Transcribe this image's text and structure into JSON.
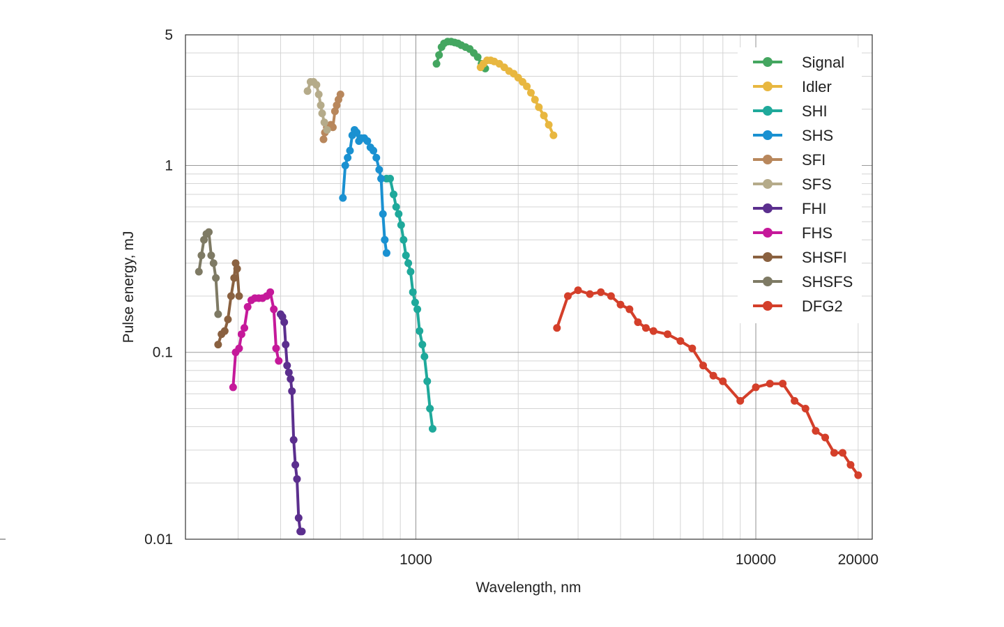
{
  "chart_data": {
    "type": "line",
    "xlabel": "Wavelength, nm",
    "ylabel": "Pulse energy, mJ",
    "x_scale": "log",
    "y_scale": "log",
    "xlim": [
      210,
      22000
    ],
    "ylim": [
      0.01,
      5
    ],
    "x_ticks": [
      1000,
      10000,
      20000
    ],
    "x_tick_labels": [
      "1000",
      "10000",
      "20000"
    ],
    "y_ticks": [
      5,
      1,
      0.1,
      0.01
    ],
    "y_tick_labels": [
      "5",
      "1",
      "0.1",
      "0.01"
    ],
    "grid": true,
    "legend_position": "top-right",
    "series": [
      {
        "name": "Signal",
        "color": "#44a660",
        "x": [
          1150,
          1170,
          1190,
          1210,
          1240,
          1270,
          1300,
          1330,
          1360,
          1400,
          1440,
          1480,
          1520,
          1560,
          1600
        ],
        "y": [
          3.5,
          3.9,
          4.3,
          4.5,
          4.6,
          4.6,
          4.55,
          4.5,
          4.4,
          4.3,
          4.2,
          4.0,
          3.8,
          3.5,
          3.3
        ]
      },
      {
        "name": "Idler",
        "color": "#e8b740",
        "x": [
          1550,
          1580,
          1620,
          1660,
          1700,
          1760,
          1820,
          1880,
          1940,
          2000,
          2060,
          2120,
          2180,
          2240,
          2300,
          2380,
          2460,
          2540
        ],
        "y": [
          3.35,
          3.5,
          3.65,
          3.65,
          3.6,
          3.5,
          3.35,
          3.2,
          3.1,
          2.95,
          2.8,
          2.65,
          2.45,
          2.25,
          2.05,
          1.85,
          1.65,
          1.45
        ]
      },
      {
        "name": "SHI",
        "color": "#1fa99b",
        "x": [
          820,
          840,
          860,
          875,
          890,
          905,
          920,
          935,
          950,
          965,
          980,
          995,
          1010,
          1025,
          1045,
          1060,
          1080,
          1100,
          1120
        ],
        "y": [
          0.85,
          0.85,
          0.7,
          0.6,
          0.55,
          0.48,
          0.4,
          0.33,
          0.3,
          0.27,
          0.21,
          0.185,
          0.17,
          0.13,
          0.11,
          0.095,
          0.07,
          0.05,
          0.039
        ]
      },
      {
        "name": "SHS",
        "color": "#1a91d1",
        "x": [
          610,
          620,
          630,
          640,
          650,
          660,
          670,
          680,
          690,
          705,
          720,
          735,
          750,
          765,
          780,
          790,
          800,
          810,
          820
        ],
        "y": [
          0.67,
          1.0,
          1.1,
          1.2,
          1.45,
          1.55,
          1.5,
          1.35,
          1.4,
          1.4,
          1.35,
          1.25,
          1.2,
          1.1,
          0.95,
          0.85,
          0.55,
          0.4,
          0.34
        ]
      },
      {
        "name": "SFI",
        "color": "#b8875c",
        "x": [
          535,
          540,
          547,
          555,
          562,
          570,
          578,
          585,
          592,
          600
        ],
        "y": [
          1.38,
          1.5,
          1.6,
          1.6,
          1.65,
          1.6,
          1.95,
          2.1,
          2.25,
          2.4
        ]
      },
      {
        "name": "SFS",
        "color": "#b5ab8a",
        "x": [
          480,
          490,
          500,
          510,
          518,
          525,
          530,
          538,
          548
        ],
        "y": [
          2.5,
          2.8,
          2.8,
          2.7,
          2.4,
          2.1,
          1.9,
          1.7,
          1.55
        ]
      },
      {
        "name": "FHI",
        "color": "#5b2f8e",
        "x": [
          400,
          405,
          410,
          414,
          418,
          423,
          428,
          432,
          437,
          442,
          447,
          452,
          457,
          462
        ],
        "y": [
          0.16,
          0.155,
          0.145,
          0.11,
          0.085,
          0.078,
          0.072,
          0.062,
          0.034,
          0.025,
          0.021,
          0.013,
          0.011,
          0.011
        ]
      },
      {
        "name": "FHS",
        "color": "#c5199a",
        "x": [
          290,
          295,
          302,
          307,
          313,
          320,
          328,
          336,
          345,
          354,
          364,
          373,
          382,
          388,
          395
        ],
        "y": [
          0.065,
          0.1,
          0.105,
          0.125,
          0.135,
          0.175,
          0.19,
          0.195,
          0.195,
          0.195,
          0.2,
          0.21,
          0.17,
          0.105,
          0.09
        ]
      },
      {
        "name": "SHSFI",
        "color": "#8a6140",
        "x": [
          262,
          268,
          274,
          280,
          286,
          292,
          295,
          298,
          302
        ],
        "y": [
          0.11,
          0.125,
          0.13,
          0.15,
          0.2,
          0.25,
          0.3,
          0.28,
          0.2
        ]
      },
      {
        "name": "SHSFS",
        "color": "#7e7a64",
        "x": [
          230,
          234,
          238,
          242,
          246,
          250,
          254,
          258,
          262
        ],
        "y": [
          0.27,
          0.33,
          0.4,
          0.43,
          0.44,
          0.33,
          0.3,
          0.25,
          0.16
        ]
      },
      {
        "name": "DFG2",
        "color": "#d43f2a",
        "x": [
          2600,
          2800,
          3000,
          3250,
          3500,
          3750,
          4000,
          4250,
          4500,
          4750,
          5000,
          5500,
          6000,
          6500,
          7000,
          7500,
          8000,
          9000,
          10000,
          11000,
          12000,
          13000,
          14000,
          15000,
          16000,
          17000,
          18000,
          19000,
          20000
        ],
        "y": [
          0.135,
          0.2,
          0.215,
          0.205,
          0.21,
          0.2,
          0.18,
          0.17,
          0.145,
          0.135,
          0.13,
          0.125,
          0.115,
          0.105,
          0.085,
          0.075,
          0.07,
          0.055,
          0.065,
          0.068,
          0.068,
          0.055,
          0.05,
          0.038,
          0.035,
          0.029,
          0.029,
          0.025,
          0.022
        ]
      }
    ]
  }
}
